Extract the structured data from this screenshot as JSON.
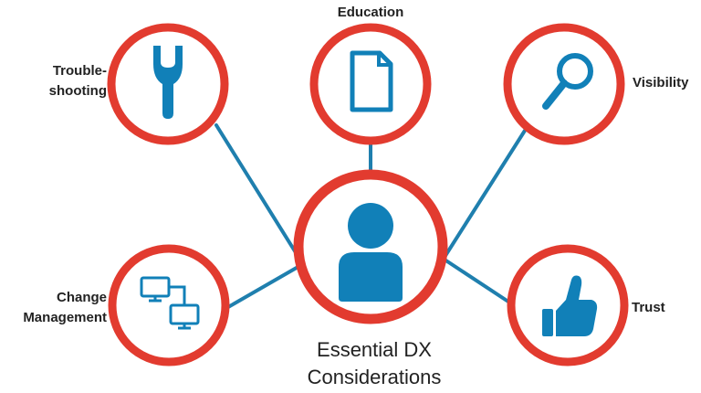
{
  "diagram": {
    "colors": {
      "ring": "#e23b2f",
      "icon": "#1180b8",
      "connector": "#1f7fae",
      "text": "#222222"
    },
    "center": {
      "icon": "user-icon",
      "title_line1": "Essential DX",
      "title_line2": "Considerations"
    },
    "nodes": [
      {
        "icon": "wrench-icon",
        "label_line1": "Trouble-",
        "label_line2": "shooting"
      },
      {
        "icon": "document-icon",
        "label_line1": "Education"
      },
      {
        "icon": "magnifier-icon",
        "label_line1": "Visibility"
      },
      {
        "icon": "computers-icon",
        "label_line1": "Change",
        "label_line2": "Management"
      },
      {
        "icon": "thumbs-up-icon",
        "label_line1": "Trust"
      }
    ]
  }
}
